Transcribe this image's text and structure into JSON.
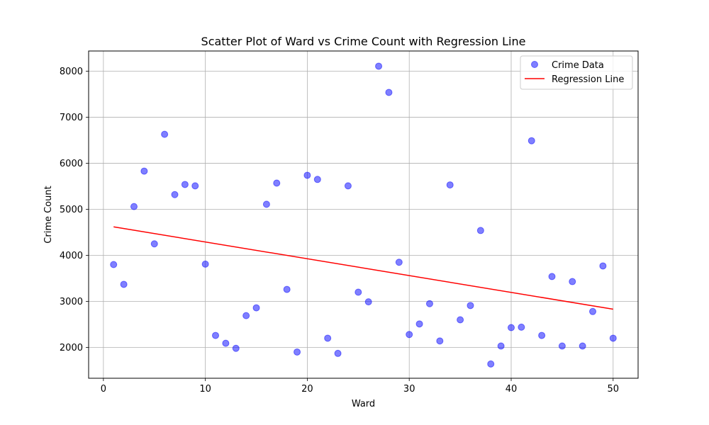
{
  "chart_data": {
    "type": "scatter",
    "title": "Scatter Plot of Ward vs Crime Count with Regression Line",
    "xlabel": "Ward",
    "ylabel": "Crime Count",
    "xlim": [
      -1.45,
      52.45
    ],
    "ylim": [
      1330,
      8440
    ],
    "xticks": [
      0,
      10,
      20,
      30,
      40,
      50
    ],
    "yticks": [
      2000,
      3000,
      4000,
      5000,
      6000,
      7000,
      8000
    ],
    "grid": true,
    "legend_position": "top-right",
    "series": [
      {
        "name": "Crime Data",
        "kind": "scatter",
        "color": "#0000ff",
        "alpha": 0.5,
        "points": [
          [
            1,
            3800
          ],
          [
            2,
            3370
          ],
          [
            3,
            5060
          ],
          [
            4,
            5830
          ],
          [
            5,
            4250
          ],
          [
            6,
            6630
          ],
          [
            7,
            5320
          ],
          [
            8,
            5540
          ],
          [
            9,
            5510
          ],
          [
            10,
            3810
          ],
          [
            11,
            2260
          ],
          [
            12,
            2090
          ],
          [
            13,
            1980
          ],
          [
            14,
            2690
          ],
          [
            15,
            2860
          ],
          [
            16,
            5110
          ],
          [
            17,
            5570
          ],
          [
            18,
            3260
          ],
          [
            19,
            1900
          ],
          [
            20,
            5740
          ],
          [
            21,
            5650
          ],
          [
            22,
            2200
          ],
          [
            23,
            1870
          ],
          [
            24,
            5510
          ],
          [
            25,
            3200
          ],
          [
            26,
            2990
          ],
          [
            27,
            8110
          ],
          [
            28,
            7540
          ],
          [
            29,
            3850
          ],
          [
            30,
            2280
          ],
          [
            31,
            2510
          ],
          [
            32,
            2950
          ],
          [
            33,
            2140
          ],
          [
            34,
            5530
          ],
          [
            35,
            2600
          ],
          [
            36,
            2910
          ],
          [
            37,
            4540
          ],
          [
            38,
            1640
          ],
          [
            39,
            2030
          ],
          [
            40,
            2430
          ],
          [
            41,
            2440
          ],
          [
            42,
            6490
          ],
          [
            43,
            2260
          ],
          [
            44,
            3540
          ],
          [
            45,
            2030
          ],
          [
            46,
            3430
          ],
          [
            47,
            2030
          ],
          [
            48,
            2780
          ],
          [
            49,
            3770
          ],
          [
            50,
            2200
          ]
        ]
      },
      {
        "name": "Regression Line",
        "kind": "line",
        "color": "#ff0000",
        "points": [
          [
            1,
            4620
          ],
          [
            50,
            2830
          ]
        ]
      }
    ]
  }
}
